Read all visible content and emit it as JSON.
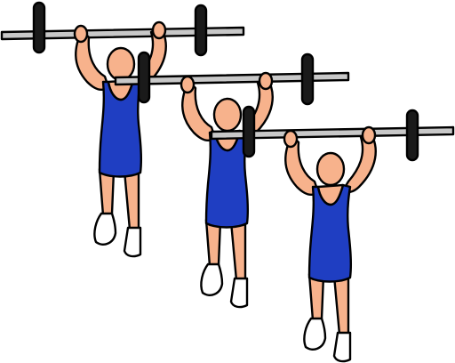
{
  "scene": {
    "background": "#ffffff",
    "subject": "weightlifter-sequence",
    "figure_count": 3
  },
  "palette": {
    "skin": "#f7b28c",
    "singlet": "#1f3ec2",
    "bar": "#c8c8c8",
    "plate": "#1a1a1a",
    "shoe": "#ffffff",
    "outline": "#000000"
  }
}
